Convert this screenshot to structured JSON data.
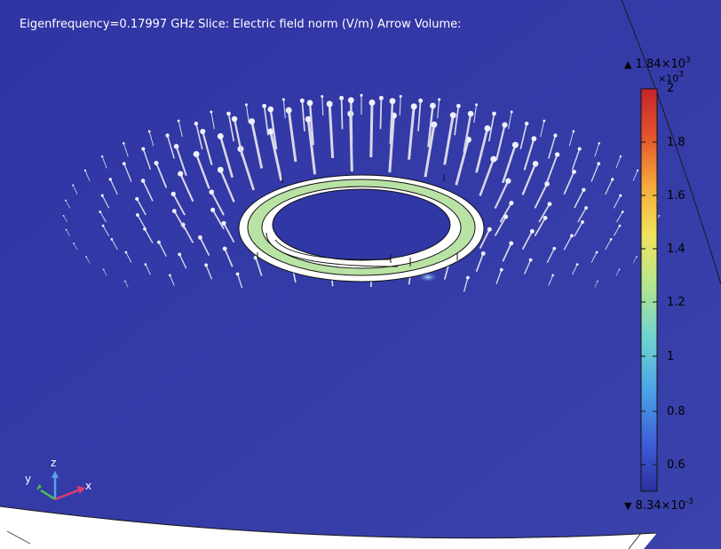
{
  "plot": {
    "title": "Eigenfrequency=0.17997 GHz  Slice: Electric field norm (V/m)  Arrow Volume:"
  },
  "colorbar": {
    "max_value": "1.84×10",
    "max_exp": "3",
    "multiplier_base": "×10",
    "multiplier_exp": "3",
    "top_tick": "2",
    "ticks": [
      "1.8",
      "1.6",
      "1.4",
      "1.2",
      "1",
      "0.8",
      "0.6"
    ],
    "min_value": "8.34×10",
    "min_exp": "-3",
    "up_arrow": "▲",
    "down_arrow": "▼",
    "colors": [
      "#2b2fa0",
      "#3e5ed8",
      "#4aa3e6",
      "#6fd3d0",
      "#b8e68c",
      "#f2e35b",
      "#f5a93a",
      "#e4552c",
      "#c4252a"
    ]
  },
  "axes_triad": {
    "z_label": "z",
    "y_label": "y",
    "x_label": "x"
  },
  "colors": {
    "background": "#3137a5",
    "field_green": "#b9e3a4"
  }
}
